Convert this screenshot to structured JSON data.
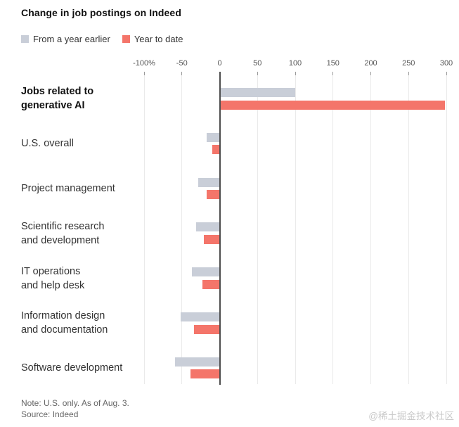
{
  "title": "Change in job postings on Indeed",
  "legend": [
    {
      "label": "From a year earlier",
      "color": "#c9ced8"
    },
    {
      "label": "Year to date",
      "color": "#f4756a"
    }
  ],
  "chart_data": {
    "type": "bar",
    "orientation": "horizontal",
    "unit": "percent",
    "title": "Change in job postings on Indeed",
    "categories": [
      {
        "lines": [
          "Jobs related to",
          "generative AI"
        ],
        "bold": true
      },
      {
        "lines": [
          "U.S. overall"
        ],
        "bold": false
      },
      {
        "lines": [
          "Project management"
        ],
        "bold": false
      },
      {
        "lines": [
          "Scientific research",
          "and development"
        ],
        "bold": false
      },
      {
        "lines": [
          "IT operations",
          "and help desk"
        ],
        "bold": false
      },
      {
        "lines": [
          "Information design",
          "and documentation"
        ],
        "bold": false
      },
      {
        "lines": [
          "Software development"
        ],
        "bold": false
      }
    ],
    "series": [
      {
        "name": "From a year earlier",
        "color": "#c9ced8",
        "values": [
          100,
          -17,
          -28,
          -31,
          -37,
          -52,
          -59
        ]
      },
      {
        "name": "Year to date",
        "color": "#f4756a",
        "values": [
          298,
          -10,
          -17,
          -21,
          -23,
          -34,
          -39
        ]
      }
    ],
    "x_axis": {
      "range": [
        -100,
        300
      ],
      "grid": true,
      "ticks": [
        {
          "label": "-100%",
          "value": -100
        },
        {
          "label": "-50",
          "value": -50
        },
        {
          "label": "0",
          "value": 0
        },
        {
          "label": "50",
          "value": 50
        },
        {
          "label": "100",
          "value": 100
        },
        {
          "label": "150",
          "value": 150
        },
        {
          "label": "200",
          "value": 200
        },
        {
          "label": "250",
          "value": 250
        },
        {
          "label": "300",
          "value": 300
        }
      ]
    },
    "colors": {
      "zero_axis": "#4d4d4d",
      "gridline": "#eaeaea",
      "tick_text": "#555555"
    },
    "legend_position": "top-left"
  },
  "note": "Note: U.S. only. As of Aug. 3.",
  "source": "Source: Indeed",
  "watermark": "@稀土掘金技术社区"
}
